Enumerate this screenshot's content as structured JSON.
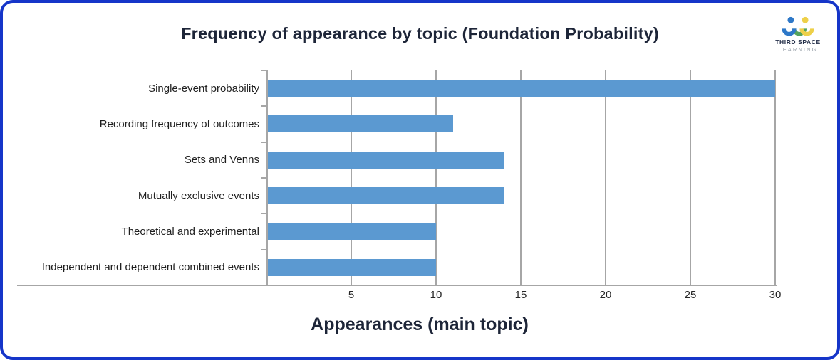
{
  "header": {
    "title": "Frequency of appearance by topic (Foundation Probability)"
  },
  "logo": {
    "line1": "THIRD SPACE",
    "line2": "LEARNING",
    "colors": {
      "blue": "#2e78c8",
      "yellow": "#eed049",
      "green": "#55a35e"
    }
  },
  "chart_data": {
    "type": "bar",
    "orientation": "horizontal",
    "title": "Frequency of appearance by topic (Foundation Probability)",
    "xlabel": "Appearances (main topic)",
    "ylabel": "",
    "categories": [
      "Single-event probability",
      "Recording frequency of outcomes",
      "Sets and Venns",
      "Mutually exclusive events",
      "Theoretical and experimental",
      "Independent and dependent combined events"
    ],
    "values": [
      30,
      11,
      14,
      14,
      10,
      10
    ],
    "xlim": [
      0,
      30
    ],
    "xticks": [
      5,
      10,
      15,
      20,
      25,
      30
    ],
    "grid": true,
    "legend": false,
    "bar_color": "#5b99d1",
    "axis_color": "#a6a6a6",
    "gridline_color": "#a6a6a6"
  },
  "frame": {
    "border_color": "#1535c9",
    "background": "#ffffff"
  }
}
